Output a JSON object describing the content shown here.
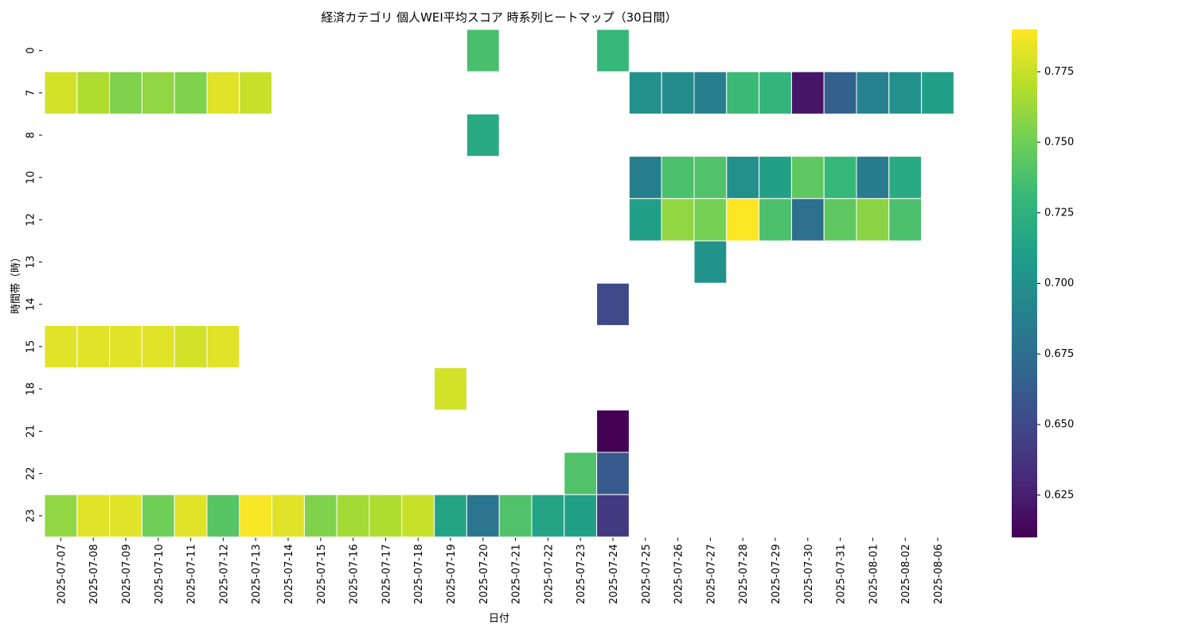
{
  "chart_data": {
    "type": "heatmap",
    "title": "経済カテゴリ 個人WEI平均スコア 時系列ヒートマップ（30日間）",
    "xlabel": "日付",
    "ylabel": "時間帯（時）",
    "x_categories": [
      "2025-07-07",
      "2025-07-08",
      "2025-07-09",
      "2025-07-10",
      "2025-07-11",
      "2025-07-12",
      "2025-07-13",
      "2025-07-14",
      "2025-07-15",
      "2025-07-16",
      "2025-07-17",
      "2025-07-18",
      "2025-07-19",
      "2025-07-20",
      "2025-07-21",
      "2025-07-22",
      "2025-07-23",
      "2025-07-24",
      "2025-07-25",
      "2025-07-26",
      "2025-07-27",
      "2025-07-28",
      "2025-07-29",
      "2025-07-30",
      "2025-07-31",
      "2025-08-01",
      "2025-08-02",
      "2025-08-06"
    ],
    "y_categories": [
      "0",
      "7",
      "8",
      "10",
      "12",
      "13",
      "14",
      "15",
      "18",
      "21",
      "22",
      "23"
    ],
    "values": [
      [
        null,
        null,
        null,
        null,
        null,
        null,
        null,
        null,
        null,
        null,
        null,
        null,
        null,
        0.737,
        null,
        null,
        null,
        0.73,
        null,
        null,
        null,
        null,
        null,
        null,
        null,
        null,
        null,
        null
      ],
      [
        0.778,
        0.768,
        0.755,
        0.76,
        0.755,
        0.782,
        0.775,
        null,
        null,
        null,
        null,
        null,
        null,
        null,
        null,
        null,
        null,
        null,
        0.7,
        0.698,
        0.688,
        0.732,
        0.728,
        0.62,
        0.665,
        0.69,
        0.7,
        0.712
      ],
      [
        null,
        null,
        null,
        null,
        null,
        null,
        null,
        null,
        null,
        null,
        null,
        null,
        null,
        0.72,
        null,
        null,
        null,
        null,
        null,
        null,
        null,
        null,
        null,
        null,
        null,
        null,
        null,
        null
      ],
      [
        null,
        null,
        null,
        null,
        null,
        null,
        null,
        null,
        null,
        null,
        null,
        null,
        null,
        null,
        null,
        null,
        null,
        null,
        0.688,
        0.738,
        0.74,
        0.7,
        0.712,
        0.745,
        0.73,
        0.685,
        0.72,
        null
      ],
      [
        null,
        null,
        null,
        null,
        null,
        null,
        null,
        null,
        null,
        null,
        null,
        null,
        null,
        null,
        null,
        null,
        null,
        null,
        0.712,
        0.76,
        0.752,
        0.79,
        0.738,
        0.675,
        0.745,
        0.758,
        0.738,
        null
      ],
      [
        null,
        null,
        null,
        null,
        null,
        null,
        null,
        null,
        null,
        null,
        null,
        null,
        null,
        null,
        null,
        null,
        null,
        null,
        null,
        null,
        0.702,
        null,
        null,
        null,
        null,
        null,
        null,
        null
      ],
      [
        null,
        null,
        null,
        null,
        null,
        null,
        null,
        null,
        null,
        null,
        null,
        null,
        null,
        null,
        null,
        null,
        null,
        0.65,
        null,
        null,
        null,
        null,
        null,
        null,
        null,
        null,
        null,
        null
      ],
      [
        0.782,
        0.782,
        0.782,
        0.782,
        0.778,
        0.782,
        null,
        null,
        null,
        null,
        null,
        null,
        null,
        null,
        null,
        null,
        null,
        null,
        null,
        null,
        null,
        null,
        null,
        null,
        null,
        null,
        null,
        null
      ],
      [
        null,
        null,
        null,
        null,
        null,
        null,
        null,
        null,
        null,
        null,
        null,
        null,
        0.778,
        null,
        null,
        null,
        null,
        null,
        null,
        null,
        null,
        null,
        null,
        null,
        null,
        null,
        null,
        null
      ],
      [
        null,
        null,
        null,
        null,
        null,
        null,
        null,
        null,
        null,
        null,
        null,
        null,
        null,
        null,
        null,
        null,
        null,
        0.61,
        null,
        null,
        null,
        null,
        null,
        null,
        null,
        null,
        null,
        null
      ],
      [
        null,
        null,
        null,
        null,
        null,
        null,
        null,
        null,
        null,
        null,
        null,
        null,
        null,
        null,
        null,
        null,
        0.74,
        0.66,
        null,
        null,
        null,
        null,
        null,
        null,
        null,
        null,
        null,
        null
      ],
      [
        0.76,
        0.782,
        0.782,
        0.75,
        0.782,
        0.742,
        0.788,
        0.782,
        0.755,
        0.765,
        0.768,
        0.775,
        0.715,
        0.68,
        0.74,
        0.715,
        0.712,
        0.64,
        null,
        null,
        null,
        null,
        null,
        null,
        null,
        null,
        null,
        null
      ]
    ],
    "colormap": "viridis",
    "vmin": 0.61,
    "vmax": 0.79,
    "colorbar_ticks": [
      "0.625",
      "0.650",
      "0.675",
      "0.700",
      "0.725",
      "0.750",
      "0.775"
    ],
    "missing_cells": "blank"
  }
}
